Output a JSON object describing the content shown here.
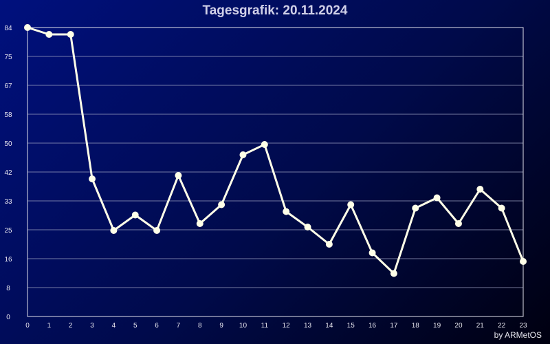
{
  "chart_data": {
    "type": "line",
    "title": "Tagesgrafik: 20.11.2024",
    "xlabel": "",
    "ylabel": "",
    "x": [
      0,
      1,
      2,
      3,
      4,
      5,
      6,
      7,
      8,
      9,
      10,
      11,
      12,
      13,
      14,
      15,
      16,
      17,
      18,
      19,
      20,
      21,
      22,
      23
    ],
    "x_tick_labels": [
      "0",
      "1",
      "2",
      "3",
      "4",
      "5",
      "6",
      "7",
      "8",
      "9",
      "10",
      "11",
      "12",
      "13",
      "14",
      "15",
      "16",
      "17",
      "18",
      "19",
      "20",
      "21",
      "22",
      "23"
    ],
    "series": [
      {
        "values": [
          84,
          82,
          82,
          40,
          25,
          29.5,
          25,
          41,
          27,
          32.5,
          47,
          50,
          30.5,
          26,
          21,
          32.5,
          18.5,
          12.5,
          31.5,
          34.5,
          27,
          37,
          31.5,
          16
        ]
      }
    ],
    "y_tick_labels": [
      "0",
      "8",
      "16",
      "25",
      "33",
      "42",
      "50",
      "58",
      "67",
      "75",
      "84"
    ],
    "ylim": [
      0,
      84
    ],
    "xlim": [
      0,
      23
    ],
    "grid": true,
    "colors": {
      "line": "#ffffe8",
      "marker": "#ffffe8",
      "grid": "#9aa0c0",
      "frame": "#e0e0ea"
    }
  },
  "credit": "by ARMetOS"
}
